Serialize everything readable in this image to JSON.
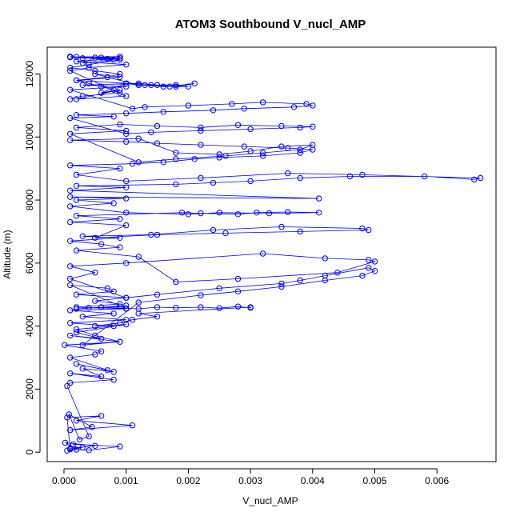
{
  "chart_data": {
    "type": "scatter",
    "title": "ATOM3 Southbound V_nucl_AMP",
    "xlabel": "V_nucl_AMP",
    "ylabel": "Altitude (m)",
    "xlim": [
      -0.00027,
      0.00695
    ],
    "ylim": [
      -300,
      12850
    ],
    "xticks": [
      0.0,
      0.001,
      0.002,
      0.003,
      0.004,
      0.005,
      0.006
    ],
    "xtick_labels": [
      "0.000",
      "0.001",
      "0.002",
      "0.003",
      "0.004",
      "0.005",
      "0.006"
    ],
    "yticks": [
      0,
      2000,
      4000,
      6000,
      8000,
      10000,
      12000
    ],
    "ytick_labels": [
      "0",
      "2000",
      "4000",
      "6000",
      "8000",
      "10000",
      "12000"
    ],
    "grid": false,
    "legend": "none",
    "series_color": "#0000ff",
    "marker": "open-circle",
    "connected": true,
    "series": [
      {
        "x": [
          5e-05,
          0.0003,
          0.0001,
          0.0005,
          2e-05,
          0.0002,
          0.00015,
          0.0009,
          0.0004,
          0.0001,
          5e-05,
          0.0006,
          0.0002,
          0.0011,
          0.0001,
          0.00045,
          8e-05,
          0.00025,
          0.0004,
          5e-05,
          0.0001,
          0.0008,
          0.0001,
          0.0006,
          0.0003,
          0.0008,
          0.0002,
          0.0007,
          0.0001,
          0.0005,
          0.0006,
          1e-05,
          0.0009,
          0.0005,
          0.0002,
          0.0008,
          0.0001,
          0.001,
          0.0003,
          0.0008,
          0.0001,
          0.001,
          0.0002,
          0.0009,
          0.0005,
          0.001,
          0.0002,
          0.0008,
          0.0007,
          0.0001,
          0.001,
          0.0004,
          0.0009,
          0.0002,
          0.001,
          0.0006,
          0.0012,
          0.0015,
          0.0018,
          0.0022,
          0.0025,
          0.0028,
          0.003,
          0.003,
          0.0012,
          0.0015,
          0.0011,
          0.0009,
          0.0005,
          0.001,
          0.0002,
          0.0006,
          0.0001,
          0.0009,
          0.0003,
          0.0012,
          0.0022,
          0.0028,
          0.0035,
          0.0042,
          0.0048,
          0.005,
          0.0049,
          0.0042,
          0.0038,
          0.0035,
          0.0025,
          0.0015,
          0.001,
          0.0001,
          0.0005,
          0.0001,
          0.001,
          0.0032,
          0.0042,
          0.0049,
          0.005,
          0.0044,
          0.0028,
          0.0018,
          0.0012,
          0.0002,
          0.0009,
          0.0006,
          0.0001,
          0.0009,
          0.0003,
          0.0014,
          0.0024,
          0.0035,
          0.0048,
          0.0049,
          0.0038,
          0.0026,
          0.0015,
          0.0005,
          0.001,
          0.0001,
          0.0009,
          0.0002,
          0.0019,
          0.0022,
          0.0028,
          0.0031,
          0.0036,
          0.0041,
          0.0033,
          0.0025,
          0.002,
          0.001,
          0.0001,
          0.0008,
          0.0002,
          0.001,
          0.0001,
          0.0041,
          0.0001,
          0.001,
          0.0002,
          0.0018,
          0.0024,
          0.003,
          0.0038,
          0.0046,
          0.0058,
          0.0066,
          0.0067,
          0.0048,
          0.0036,
          0.0022,
          0.001,
          0.0002,
          0.0009,
          0.0001,
          0.0011,
          0.0016,
          0.0021,
          0.0025,
          0.0032,
          0.0038,
          0.004,
          0.0036,
          0.0029,
          0.0022,
          0.0015,
          0.001,
          0.0001,
          0.0012,
          0.0018,
          0.0025,
          0.003,
          0.0035,
          0.004,
          0.0038,
          0.0032,
          0.0026,
          0.0018,
          0.0012,
          0.0001,
          0.001,
          0.0002,
          0.0009,
          0.0015,
          0.0022,
          0.0028,
          0.0035,
          0.004,
          0.0038,
          0.003,
          0.0022,
          0.0014,
          0.001,
          0.0001,
          0.0008,
          0.0002,
          0.001,
          0.0016,
          0.0024,
          0.0029,
          0.0037,
          0.004,
          0.0039,
          0.0032,
          0.0027,
          0.002,
          0.0013,
          0.0011,
          0.0001,
          0.001,
          0.0003,
          0.0012,
          0.0015,
          0.0018,
          0.002,
          0.0016,
          0.0013,
          0.001,
          0.0002,
          0.0009,
          0.0005,
          0.0012,
          0.0017,
          0.0021,
          0.0018,
          0.0014,
          0.0012,
          0.001,
          0.0006,
          0.0009,
          0.0002,
          0.001,
          0.0001,
          0.0004,
          0.001,
          0.0002,
          0.0009,
          0.0001,
          0.0008,
          0.0003,
          0.0005,
          0.0001,
          0.0007,
          0.0002,
          0.0009,
          0.0003,
          0.0006,
          0.0009,
          0.0004,
          0.0001,
          0.0005,
          0.0009,
          0.0007,
          0.0002,
          0.0004,
          0.0006,
          0.0008,
          0.0009,
          0.0003,
          0.0001
        ],
        "y": [
          50,
          150,
          120,
          200,
          300,
          80,
          250,
          180,
          60,
          90,
          1100,
          1150,
          1000,
          850,
          700,
          800,
          1200,
          400,
          500,
          2100,
          2200,
          2300,
          2500,
          2400,
          2650,
          2550,
          2800,
          2600,
          3000,
          3100,
          3200,
          3400,
          3500,
          3700,
          3900,
          4000,
          4100,
          4200,
          4300,
          4400,
          4500,
          4550,
          4600,
          4700,
          4800,
          4900,
          5000,
          5100,
          5200,
          5300,
          4560,
          4580,
          4620,
          4550,
          4650,
          4600,
          4550,
          4600,
          4580,
          4600,
          4570,
          4620,
          4580,
          4600,
          4400,
          4300,
          4200,
          4100,
          4000,
          4050,
          3800,
          3600,
          3700,
          3500,
          3400,
          4750,
          4980,
          5100,
          5250,
          5450,
          5600,
          5750,
          5850,
          5600,
          5450,
          5350,
          5200,
          5000,
          4900,
          5500,
          5700,
          5900,
          6000,
          6300,
          6150,
          6100,
          6050,
          5700,
          5500,
          5400,
          6200,
          6400,
          6500,
          6600,
          6700,
          6800,
          6850,
          6900,
          7050,
          7150,
          7100,
          7050,
          7000,
          6950,
          6900,
          6800,
          7200,
          7300,
          7400,
          7500,
          7600,
          7580,
          7550,
          7600,
          7620,
          7600,
          7580,
          7600,
          7550,
          7600,
          7800,
          7900,
          8000,
          8050,
          8100,
          8050,
          8300,
          8400,
          8450,
          8500,
          8550,
          8600,
          8700,
          8750,
          8750,
          8650,
          8700,
          8800,
          8850,
          8700,
          8600,
          8800,
          9000,
          9100,
          9150,
          9200,
          9300,
          9350,
          9400,
          9500,
          9600,
          9650,
          9700,
          9750,
          9800,
          9850,
          9900,
          9950,
          9500,
          9450,
          9550,
          9700,
          9750,
          9600,
          9500,
          9400,
          9300,
          9200,
          10100,
          10200,
          10300,
          10400,
          10350,
          10300,
          10380,
          10350,
          10330,
          10300,
          10250,
          10200,
          10150,
          10100,
          10600,
          10650,
          10700,
          10750,
          10800,
          10850,
          10900,
          10950,
          11000,
          11050,
          11100,
          11050,
          11000,
          10950,
          10900,
          11500,
          11600,
          11650,
          11700,
          11650,
          11650,
          11600,
          11600,
          11650,
          11700,
          11800,
          11900,
          12000,
          11650,
          11600,
          11700,
          11600,
          11650,
          11650,
          11700,
          11400,
          11500,
          11200,
          11300,
          12100,
          12200,
          12300,
          12400,
          12500,
          12550,
          12450,
          12350,
          12520,
          12530,
          12480,
          12540,
          12550,
          12500,
          12520,
          12450,
          12300,
          12200,
          12100,
          12000,
          11900,
          11800,
          11700,
          11600,
          11500,
          11400,
          11300,
          11200
        ]
      }
    ]
  }
}
